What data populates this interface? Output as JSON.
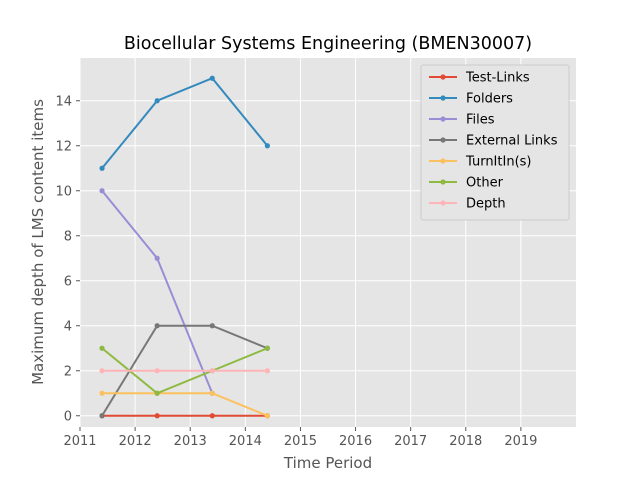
{
  "chart_data": {
    "type": "line",
    "title": "Biocellular Systems Engineering (BMEN30007)",
    "xlabel": "Time Period",
    "ylabel": "Maximum depth of LMS content items",
    "xlim": [
      2011,
      2020
    ],
    "ylim": [
      -0.5,
      15.9
    ],
    "x_ticks": [
      "2011",
      "2012",
      "2013",
      "2014",
      "2015",
      "2016",
      "2017",
      "2018",
      "2019"
    ],
    "y_ticks": [
      "0",
      "2",
      "4",
      "6",
      "8",
      "10",
      "12",
      "14"
    ],
    "x": [
      2011.4,
      2012.4,
      2013.4,
      2014.4
    ],
    "grid": true,
    "legend_position": "top-right",
    "series": [
      {
        "name": "Test-Links",
        "color": "#E24A33",
        "values": [
          0,
          0,
          0,
          0
        ]
      },
      {
        "name": "Folders",
        "color": "#348ABD",
        "values": [
          11,
          14,
          15,
          12
        ]
      },
      {
        "name": "Files",
        "color": "#988ED5",
        "values": [
          10,
          7,
          1,
          null
        ]
      },
      {
        "name": "External Links",
        "color": "#777777",
        "values": [
          0,
          4,
          4,
          3
        ]
      },
      {
        "name": "TurnItIn(s)",
        "color": "#FBC15E",
        "values": [
          1,
          1,
          1,
          0
        ]
      },
      {
        "name": "Other",
        "color": "#8EBA42",
        "values": [
          3,
          1,
          2,
          3
        ]
      },
      {
        "name": "Depth",
        "color": "#FFB5B8",
        "values": [
          2,
          2,
          2,
          2
        ]
      }
    ]
  }
}
